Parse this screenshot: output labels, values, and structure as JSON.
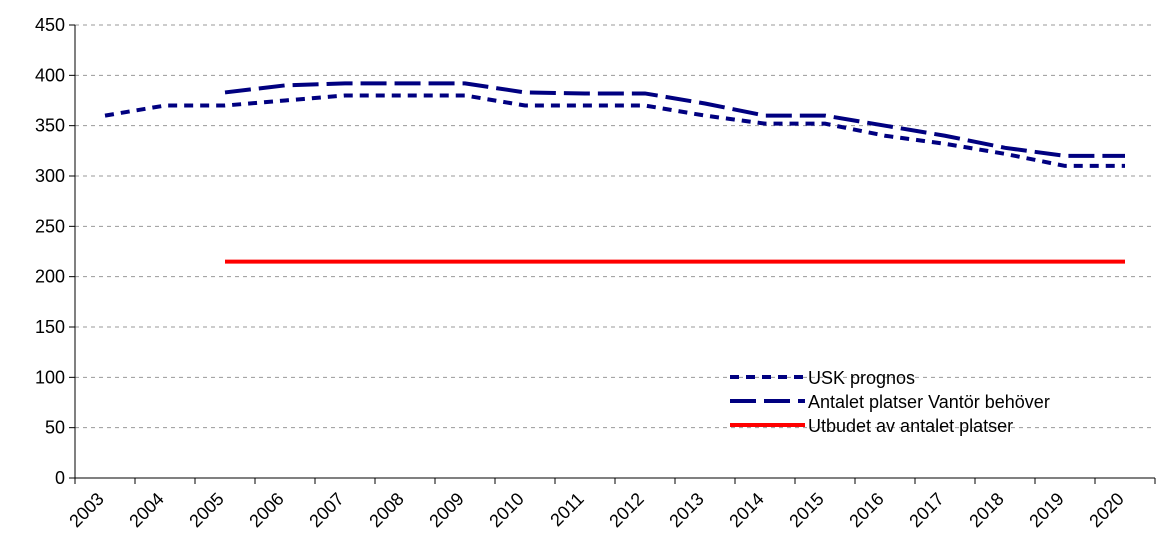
{
  "chart_data": {
    "type": "line",
    "categories": [
      "2003",
      "2004",
      "2005",
      "2006",
      "2007",
      "2008",
      "2009",
      "2010",
      "2011",
      "2012",
      "2013",
      "2014",
      "2015",
      "2016",
      "2017",
      "2018",
      "2019",
      "2020"
    ],
    "series": [
      {
        "name": "USK prognos",
        "color": "#000080",
        "dash": "short",
        "values": [
          360,
          370,
          370,
          375,
          380,
          380,
          380,
          370,
          370,
          370,
          360,
          352,
          352,
          340,
          332,
          322,
          310,
          310
        ]
      },
      {
        "name": "Antalet platser Vantör behöver",
        "color": "#000080",
        "dash": "long",
        "values": [
          null,
          null,
          383,
          390,
          392,
          392,
          392,
          383,
          382,
          382,
          372,
          360,
          360,
          350,
          340,
          328,
          320,
          320
        ]
      },
      {
        "name": "Utbudet av antalet platser",
        "color": "#ff0000",
        "dash": "solid",
        "values": [
          null,
          null,
          215,
          215,
          215,
          215,
          215,
          215,
          215,
          215,
          215,
          215,
          215,
          215,
          215,
          215,
          215,
          215
        ]
      }
    ],
    "ylim": [
      0,
      450
    ],
    "yticks": [
      0,
      50,
      100,
      150,
      200,
      250,
      300,
      350,
      400,
      450
    ],
    "grid": true,
    "legend": "lower right"
  }
}
